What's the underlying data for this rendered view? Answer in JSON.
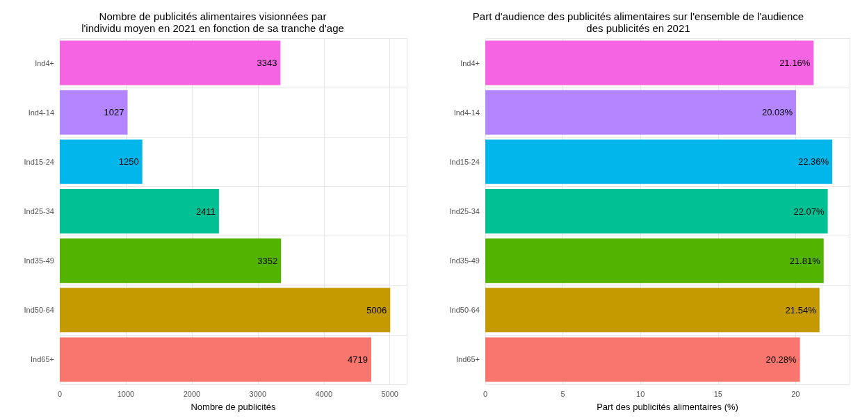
{
  "chart_data": [
    {
      "type": "bar",
      "orientation": "horizontal",
      "title": "Nombre de publicités alimentaires visionnées par\nl'individu moyen en 2021 en fonction de sa tranche d'age",
      "xlabel": "Nombre de publicités",
      "categories": [
        "Ind4+",
        "Ind4-14",
        "Ind15-24",
        "Ind25-34",
        "Ind35-49",
        "Ind50-64",
        "Ind65+"
      ],
      "values": [
        3343,
        1027,
        1250,
        2411,
        3352,
        5006,
        4719
      ],
      "colors": [
        "#f564e3",
        "#b385ff",
        "#00b6eb",
        "#00c094",
        "#53b400",
        "#c49a00",
        "#f8766d"
      ],
      "xlim": [
        0,
        5256
      ],
      "xticks": [
        0,
        1000,
        2000,
        3000,
        4000,
        5000
      ],
      "grid": true,
      "data_labels": true
    },
    {
      "type": "bar",
      "orientation": "horizontal",
      "title": "Part d'audience des publicités alimentaires sur l'ensemble de l'audience\ndes publicités en 2021",
      "xlabel": "Part des publicités alimentaires (%)",
      "categories": [
        "Ind4+",
        "Ind4-14",
        "Ind15-24",
        "Ind25-34",
        "Ind35-49",
        "Ind50-64",
        "Ind65+"
      ],
      "values": [
        21.16,
        20.03,
        22.36,
        22.07,
        21.81,
        21.54,
        20.28
      ],
      "colors": [
        "#f564e3",
        "#b385ff",
        "#00b6eb",
        "#00c094",
        "#53b400",
        "#c49a00",
        "#f8766d"
      ],
      "value_labels": [
        "21.16%",
        "20.03%",
        "22.36%",
        "22.07%",
        "21.81%",
        "21.54%",
        "20.28%"
      ],
      "xlim": [
        0,
        23.48
      ],
      "xticks": [
        0,
        5,
        10,
        15,
        20
      ],
      "grid": true
    }
  ]
}
